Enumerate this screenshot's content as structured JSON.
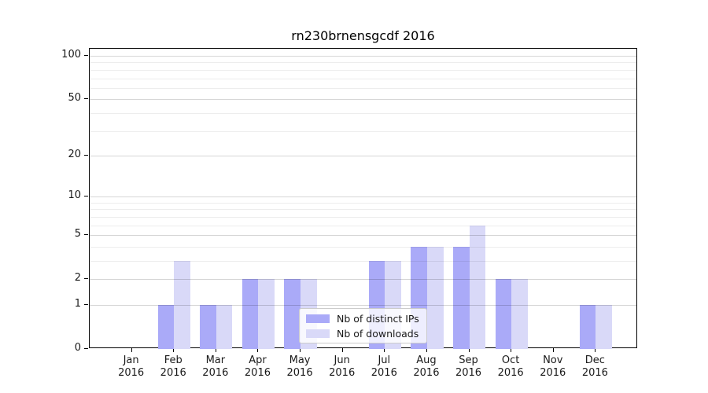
{
  "chart_data": {
    "type": "bar",
    "title": "rn230brnensgcdf 2016",
    "categories": [
      "Jan",
      "Feb",
      "Mar",
      "Apr",
      "May",
      "Jun",
      "Jul",
      "Aug",
      "Sep",
      "Oct",
      "Nov",
      "Dec"
    ],
    "year_label": "2016",
    "series": [
      {
        "name": "Nb of distinct IPs",
        "color": "#aaaaf8",
        "values": [
          0,
          1,
          1,
          2,
          2,
          0,
          3,
          4,
          4,
          2,
          0,
          1
        ]
      },
      {
        "name": "Nb of downloads",
        "color": "#d9d9f8",
        "values": [
          0,
          3,
          1,
          2,
          2,
          0,
          3,
          4,
          6,
          2,
          0,
          1
        ]
      }
    ],
    "y_axis": {
      "scale": "log1p",
      "ticks": [
        0,
        1,
        2,
        5,
        10,
        20,
        50,
        100
      ],
      "minor_ticks": [
        3,
        4,
        6,
        7,
        8,
        9,
        30,
        40,
        60,
        70,
        80,
        90
      ],
      "ymax": 112
    },
    "xlabel": "",
    "ylabel": "",
    "grid": true,
    "legend_position": "lower center"
  },
  "colors": {
    "bar_dark": "#aaaaf8",
    "bar_light": "#d9d9f8",
    "axis": "#000000",
    "text": "#1a1a1a",
    "legend_border": "#cccccc"
  }
}
